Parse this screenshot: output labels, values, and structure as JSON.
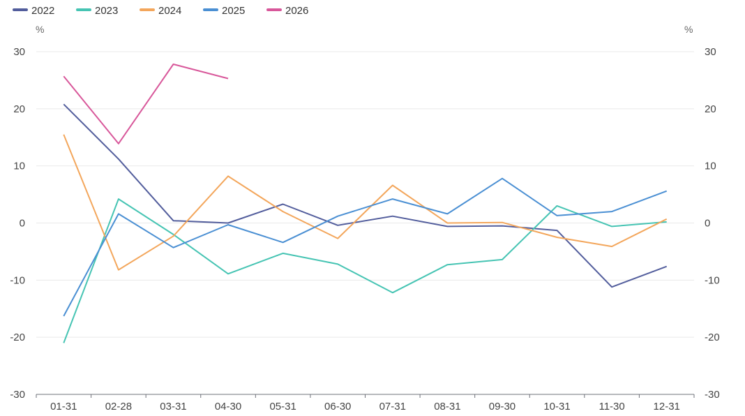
{
  "chart_data": {
    "type": "line",
    "categories": [
      "01-31",
      "02-28",
      "03-31",
      "04-30",
      "05-31",
      "06-30",
      "07-31",
      "08-31",
      "09-30",
      "10-31",
      "11-30",
      "12-31"
    ],
    "y_unit_left": "%",
    "y_unit_right": "%",
    "ylim": [
      -30,
      30
    ],
    "yticks": [
      30,
      20,
      10,
      0,
      -10,
      -20,
      -30
    ],
    "grid": true,
    "legend_position": "top-left",
    "series": [
      {
        "name": "2022",
        "color": "#525d9c",
        "values": [
          20.8,
          11.2,
          0.4,
          0.0,
          3.3,
          -0.4,
          1.2,
          -0.6,
          -0.5,
          -1.3,
          -11.2,
          -7.6
        ]
      },
      {
        "name": "2023",
        "color": "#46c4b3",
        "values": [
          -21.0,
          4.2,
          -2.0,
          -8.9,
          -5.3,
          -7.2,
          -12.2,
          -7.3,
          -6.4,
          3.0,
          -0.6,
          0.2
        ]
      },
      {
        "name": "2024",
        "color": "#f3a65b",
        "values": [
          15.5,
          -8.2,
          -2.3,
          8.2,
          2.0,
          -2.7,
          6.6,
          0.0,
          0.1,
          -2.5,
          -4.1,
          0.7
        ]
      },
      {
        "name": "2025",
        "color": "#4a8fd3",
        "values": [
          -16.3,
          1.6,
          -4.3,
          -0.3,
          -3.4,
          1.2,
          4.2,
          1.6,
          7.8,
          1.3,
          2.0,
          5.6
        ]
      },
      {
        "name": "2026",
        "color": "#d8579a",
        "values": [
          25.7,
          13.9,
          27.8,
          25.3,
          null,
          null,
          null,
          null,
          null,
          null,
          null,
          null
        ]
      }
    ]
  }
}
